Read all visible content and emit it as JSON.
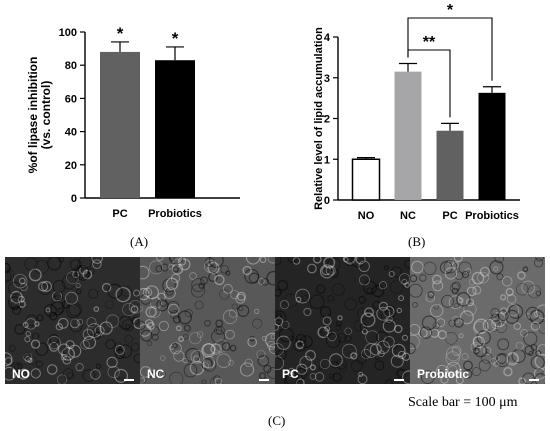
{
  "chart_data": [
    {
      "type": "bar",
      "categories": [
        "PC",
        "Probiotics"
      ],
      "values": [
        88,
        83
      ],
      "errors": [
        6,
        8
      ],
      "significance": [
        "*",
        "*"
      ],
      "colors": [
        "#616161",
        "#000000"
      ],
      "ylabel": "%of lipase inhibition\n(vs. control)",
      "ylim": [
        0,
        100
      ],
      "yticks": [
        0,
        20,
        40,
        60,
        80,
        100
      ],
      "panel_label": "(A)"
    },
    {
      "type": "bar",
      "categories": [
        "NO",
        "NC",
        "PC",
        "Probiotics"
      ],
      "values": [
        1.0,
        3.15,
        1.7,
        2.63
      ],
      "errors": [
        0.04,
        0.2,
        0.18,
        0.15
      ],
      "colors": [
        "#ffffff",
        "#a6a6a8",
        "#616161",
        "#000000"
      ],
      "ylabel": "Relative level of lipid accumulation",
      "ylim": [
        0,
        4
      ],
      "yticks": [
        0,
        1,
        2,
        3,
        4
      ],
      "brackets": [
        {
          "from": "NC",
          "to": "PC",
          "label": "**"
        },
        {
          "from": "NC",
          "to": "Probiotics",
          "label": "*"
        }
      ],
      "panel_label": "(B)"
    }
  ],
  "micrographs": {
    "panels": [
      {
        "label": "NO",
        "tone": "#2c2c2c"
      },
      {
        "label": "NC",
        "tone": "#585858"
      },
      {
        "label": "PC",
        "tone": "#242424"
      },
      {
        "label": "Probiotic",
        "tone": "#6b6b6b"
      }
    ],
    "scale_text": "Scale bar = 100 μm",
    "panel_label": "(C)"
  }
}
